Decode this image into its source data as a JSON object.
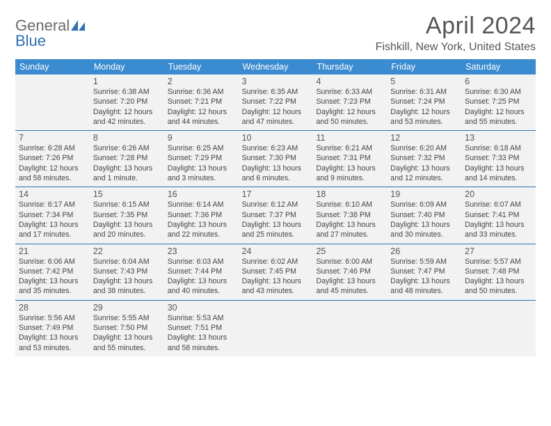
{
  "logo": {
    "word1": "General",
    "word2": "Blue"
  },
  "title": "April 2024",
  "location": "Fishkill, New York, United States",
  "colors": {
    "header_bg": "#3a8bd0",
    "row_divider": "#2f6fb3",
    "cell_bg": "#f2f2f2",
    "text": "#444444",
    "logo_gray": "#6a6a6a",
    "logo_blue": "#2f6fb3"
  },
  "daysOfWeek": [
    "Sunday",
    "Monday",
    "Tuesday",
    "Wednesday",
    "Thursday",
    "Friday",
    "Saturday"
  ],
  "firstDayOfWeekIndex": 1,
  "daysInMonth": 30,
  "days": {
    "1": {
      "sunrise": "6:38 AM",
      "sunset": "7:20 PM",
      "daylight": "12 hours and 42 minutes."
    },
    "2": {
      "sunrise": "6:36 AM",
      "sunset": "7:21 PM",
      "daylight": "12 hours and 44 minutes."
    },
    "3": {
      "sunrise": "6:35 AM",
      "sunset": "7:22 PM",
      "daylight": "12 hours and 47 minutes."
    },
    "4": {
      "sunrise": "6:33 AM",
      "sunset": "7:23 PM",
      "daylight": "12 hours and 50 minutes."
    },
    "5": {
      "sunrise": "6:31 AM",
      "sunset": "7:24 PM",
      "daylight": "12 hours and 53 minutes."
    },
    "6": {
      "sunrise": "6:30 AM",
      "sunset": "7:25 PM",
      "daylight": "12 hours and 55 minutes."
    },
    "7": {
      "sunrise": "6:28 AM",
      "sunset": "7:26 PM",
      "daylight": "12 hours and 58 minutes."
    },
    "8": {
      "sunrise": "6:26 AM",
      "sunset": "7:28 PM",
      "daylight": "13 hours and 1 minute."
    },
    "9": {
      "sunrise": "6:25 AM",
      "sunset": "7:29 PM",
      "daylight": "13 hours and 3 minutes."
    },
    "10": {
      "sunrise": "6:23 AM",
      "sunset": "7:30 PM",
      "daylight": "13 hours and 6 minutes."
    },
    "11": {
      "sunrise": "6:21 AM",
      "sunset": "7:31 PM",
      "daylight": "13 hours and 9 minutes."
    },
    "12": {
      "sunrise": "6:20 AM",
      "sunset": "7:32 PM",
      "daylight": "13 hours and 12 minutes."
    },
    "13": {
      "sunrise": "6:18 AM",
      "sunset": "7:33 PM",
      "daylight": "13 hours and 14 minutes."
    },
    "14": {
      "sunrise": "6:17 AM",
      "sunset": "7:34 PM",
      "daylight": "13 hours and 17 minutes."
    },
    "15": {
      "sunrise": "6:15 AM",
      "sunset": "7:35 PM",
      "daylight": "13 hours and 20 minutes."
    },
    "16": {
      "sunrise": "6:14 AM",
      "sunset": "7:36 PM",
      "daylight": "13 hours and 22 minutes."
    },
    "17": {
      "sunrise": "6:12 AM",
      "sunset": "7:37 PM",
      "daylight": "13 hours and 25 minutes."
    },
    "18": {
      "sunrise": "6:10 AM",
      "sunset": "7:38 PM",
      "daylight": "13 hours and 27 minutes."
    },
    "19": {
      "sunrise": "6:09 AM",
      "sunset": "7:40 PM",
      "daylight": "13 hours and 30 minutes."
    },
    "20": {
      "sunrise": "6:07 AM",
      "sunset": "7:41 PM",
      "daylight": "13 hours and 33 minutes."
    },
    "21": {
      "sunrise": "6:06 AM",
      "sunset": "7:42 PM",
      "daylight": "13 hours and 35 minutes."
    },
    "22": {
      "sunrise": "6:04 AM",
      "sunset": "7:43 PM",
      "daylight": "13 hours and 38 minutes."
    },
    "23": {
      "sunrise": "6:03 AM",
      "sunset": "7:44 PM",
      "daylight": "13 hours and 40 minutes."
    },
    "24": {
      "sunrise": "6:02 AM",
      "sunset": "7:45 PM",
      "daylight": "13 hours and 43 minutes."
    },
    "25": {
      "sunrise": "6:00 AM",
      "sunset": "7:46 PM",
      "daylight": "13 hours and 45 minutes."
    },
    "26": {
      "sunrise": "5:59 AM",
      "sunset": "7:47 PM",
      "daylight": "13 hours and 48 minutes."
    },
    "27": {
      "sunrise": "5:57 AM",
      "sunset": "7:48 PM",
      "daylight": "13 hours and 50 minutes."
    },
    "28": {
      "sunrise": "5:56 AM",
      "sunset": "7:49 PM",
      "daylight": "13 hours and 53 minutes."
    },
    "29": {
      "sunrise": "5:55 AM",
      "sunset": "7:50 PM",
      "daylight": "13 hours and 55 minutes."
    },
    "30": {
      "sunrise": "5:53 AM",
      "sunset": "7:51 PM",
      "daylight": "13 hours and 58 minutes."
    }
  },
  "labels": {
    "sunrise_prefix": "Sunrise: ",
    "sunset_prefix": "Sunset: ",
    "daylight_prefix": "Daylight: "
  }
}
